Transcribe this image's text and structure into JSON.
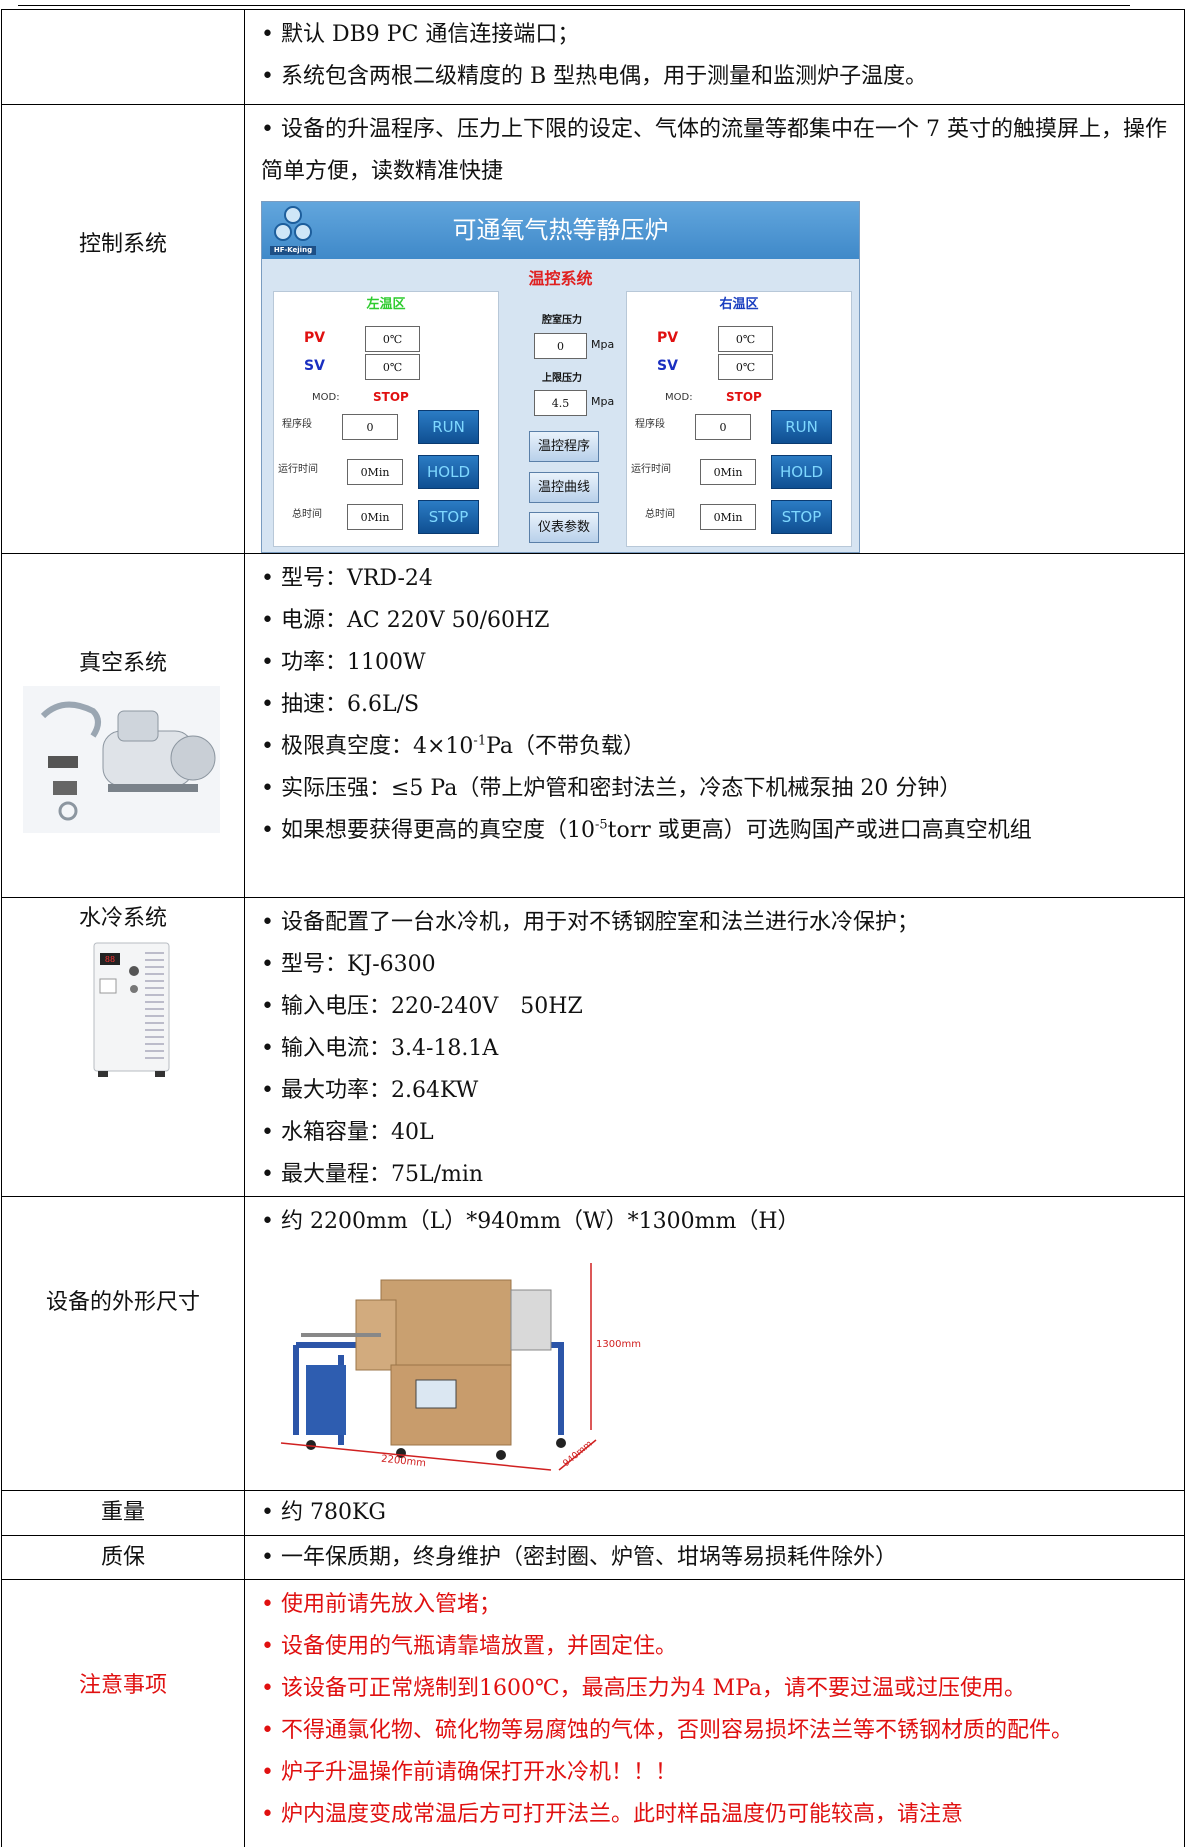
{
  "table": {
    "rows": [
      {
        "items": [
          "默认 DB9 PC 通信连接端口；",
          "系统包含两根二级精度的 B 型热电偶，用于测量和监测炉子温度。"
        ]
      },
      {
        "label": "控制系统",
        "items": [
          "设备的升温程序、压力上下限的设定、气体的流量等都集中在一个 7 英寸的触摸屏上，操作简单方便，读数精准快捷"
        ],
        "panel": {
          "logo": "HF-Kejing",
          "title": "可通氧气热等静压炉",
          "subtitle": "温控系统",
          "zones": [
            {
              "name": "左温区",
              "pv_label": "PV",
              "pv": "0℃",
              "sv_label": "SV",
              "sv": "0℃",
              "mod_label": "MOD:",
              "mod": "STOP",
              "step_label": "程序段",
              "step": 0,
              "run": "RUN",
              "runtime_label": "运行时间",
              "runtime": "0Min",
              "hold": "HOLD",
              "total_label": "总时间",
              "total": "0Min",
              "stop": "STOP"
            },
            {
              "name": "右温区",
              "pv_label": "PV",
              "pv": "0℃",
              "sv_label": "SV",
              "sv": "0℃",
              "mod_label": "MOD:",
              "mod": "STOP",
              "step_label": "程序段",
              "step": 0,
              "run": "RUN",
              "runtime_label": "运行时间",
              "runtime": "0Min",
              "hold": "HOLD",
              "total_label": "总时间",
              "total": "0Min",
              "stop": "STOP"
            }
          ],
          "chamber_label": "腔室压力",
          "chamber": 0,
          "chamber_unit": "Mpa",
          "limit_label": "上限压力",
          "limit": 4.5,
          "limit_unit": "Mpa",
          "buttons": [
            "温控程序",
            "温控曲线",
            "仪表参数"
          ]
        }
      },
      {
        "label": "真空系统",
        "items": [
          "型号：VRD-24",
          "电源：AC 220V 50/60HZ",
          "功率：1100W",
          "抽速：6.6L/S",
          {
            "text": "极限真空度：4×10",
            "sup": "-1",
            "tail": "Pa（不带负载）"
          },
          "实际压强：≤5 Pa（带上炉管和密封法兰，冷态下机械泵抽 20 分钟）",
          {
            "text": "如果想要获得更高的真空度（10",
            "sup": "-5",
            "tail": "torr 或更高）可选购国产或进口高真空机组"
          }
        ]
      },
      {
        "label": "水冷系统",
        "items": [
          "设备配置了一台水冷机，用于对不锈钢腔室和法兰进行水冷保护；",
          "型号：KJ-6300",
          "输入电压：220-240V　50HZ",
          "输入电流：3.4-18.1A",
          "最大功率：2.64KW",
          "水箱容量：40L",
          "最大量程：75L/min"
        ]
      },
      {
        "label": "设备的外形尺寸",
        "items": [
          "约 2200mm（L）*940mm（W）*1300mm（H）"
        ],
        "figure": {
          "height": "1300mm",
          "length": "2200mm",
          "width": "940mm"
        }
      },
      {
        "label": "重量",
        "items": [
          "约 780KG"
        ]
      },
      {
        "label": "质保",
        "items": [
          "一年保质期，终身维护（密封圈、炉管、坩埚等易损耗件除外）"
        ]
      },
      {
        "label": "注意事项",
        "items": [
          "使用前请先放入管堵；",
          "设备使用的气瓶请靠墙放置，并固定住。",
          "该设备可正常烧制到1600℃，最高压力为4 MPa，请不要过温或过压使用。",
          "不得通氯化物、硫化物等易腐蚀的气体，否则容易损坏法兰等不锈钢材质的配件。",
          "炉子升温操作前请确保打开水冷机！！！",
          "炉内温度变成常温后方可打开法兰。此时样品温度仍可能较高，请注意"
        ]
      }
    ]
  }
}
